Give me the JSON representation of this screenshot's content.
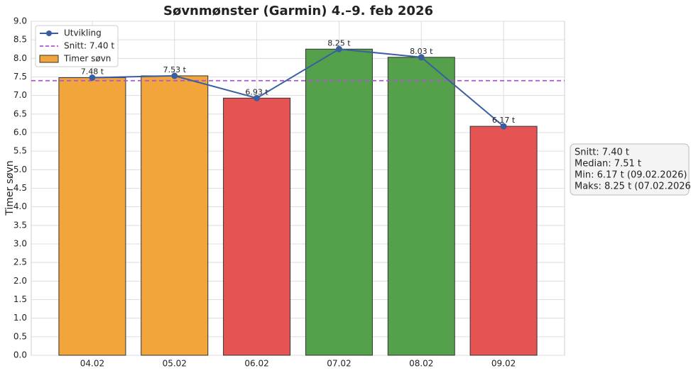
{
  "chart_data": {
    "type": "bar",
    "title": "Søvnmønster (Garmin) 4.–9. feb 2026",
    "ylabel": "Timer søvn",
    "categories": [
      "04.02",
      "05.02",
      "06.02",
      "07.02",
      "08.02",
      "09.02"
    ],
    "series": [
      {
        "name": "Timer søvn",
        "type": "bar",
        "color": "#f2a53a",
        "colors": [
          "#f2a53a",
          "#f2a53a",
          "#e55353",
          "#55a04b",
          "#55a04b",
          "#e55353"
        ],
        "values": [
          7.48,
          7.53,
          6.93,
          8.25,
          8.03,
          6.17
        ],
        "value_labels": [
          "7.48 t",
          "7.53 t",
          "6.93 t",
          "8.25 t",
          "8.03 t",
          "6.17 t"
        ]
      },
      {
        "name": "Utvikling",
        "type": "line",
        "color": "#3a5fa0",
        "values": [
          7.48,
          7.53,
          6.93,
          8.25,
          8.03,
          6.17
        ]
      }
    ],
    "reference_line": {
      "name": "Snitt: 7.40 t",
      "value": 7.4,
      "color": "#a855d8"
    },
    "ylim": [
      0,
      9
    ],
    "yticks": [
      {
        "value": 0,
        "label": "0.0"
      },
      0.5,
      {
        "value": 1,
        "label": "1.0"
      },
      1.5,
      {
        "value": 2,
        "label": "2.0"
      },
      2.5,
      {
        "value": 3,
        "label": "3.0"
      },
      3.5,
      {
        "value": 4,
        "label": "4.0"
      },
      4.5,
      {
        "value": 5,
        "label": "5.0"
      },
      5.5,
      {
        "value": 6,
        "label": "6.0"
      },
      6.5,
      {
        "value": 7,
        "label": "7.0"
      },
      7.5,
      {
        "value": 8,
        "label": "8.0"
      },
      8.5,
      {
        "value": 9,
        "label": "9.0"
      }
    ],
    "grid": true,
    "legend": "upper left",
    "stats_box": [
      "Snitt: 7.40 t",
      "Median: 7.51 t",
      "Min: 6.17 t (09.02.2026)",
      "Maks: 8.25 t (07.02.2026)"
    ]
  }
}
